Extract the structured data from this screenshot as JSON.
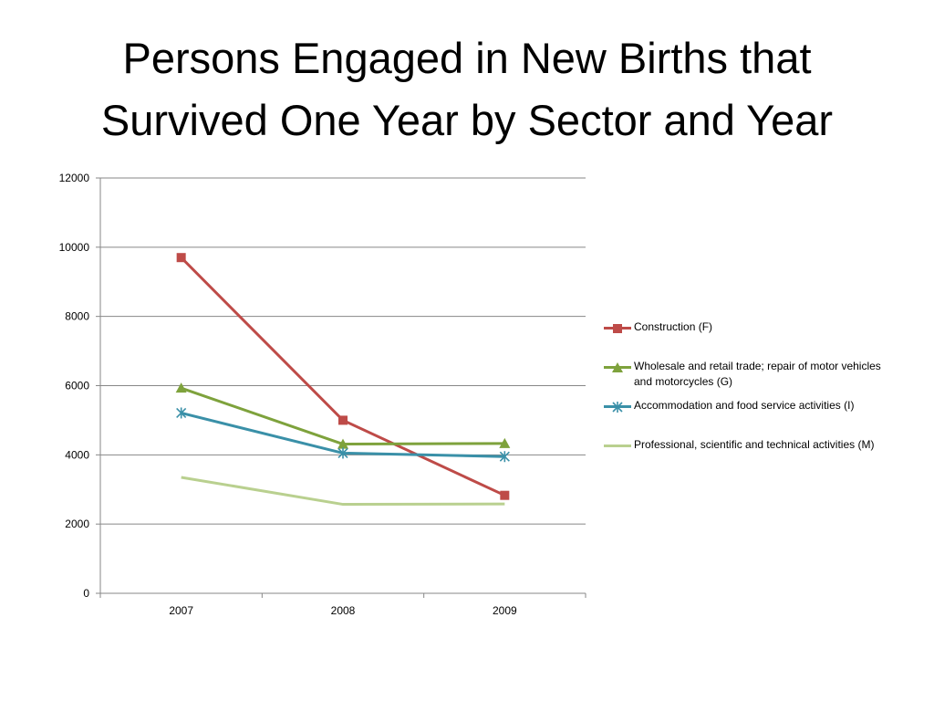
{
  "title_lines": [
    "Persons Engaged in New Births that",
    "Survived One Year by Sector and Year"
  ],
  "chart_data": {
    "type": "line",
    "title": "Persons Engaged in New Births that Survived One Year by Sector and Year",
    "xlabel": "",
    "ylabel": "",
    "categories": [
      "2007",
      "2008",
      "2009"
    ],
    "ylim": [
      0,
      12000
    ],
    "yticks": [
      0,
      2000,
      4000,
      6000,
      8000,
      10000,
      12000
    ],
    "grid": "horizontal",
    "legend_position": "right",
    "series": [
      {
        "name": "Construction (F)",
        "values": [
          9700,
          5000,
          2830
        ],
        "color": "#BE4B48",
        "marker": "square"
      },
      {
        "name": "Wholesale and retail trade; repair of motor vehicles and motorcycles (G)",
        "values": [
          5930,
          4310,
          4330
        ],
        "color": "#7EA23C",
        "marker": "triangle"
      },
      {
        "name": "Accommodation and food service activities (I)",
        "values": [
          5210,
          4050,
          3950
        ],
        "color": "#3A90A8",
        "marker": "star"
      },
      {
        "name": "Professional, scientific and technical activities (M)",
        "values": [
          3350,
          2570,
          2580
        ],
        "color": "#B9D08F",
        "marker": "none"
      }
    ]
  }
}
